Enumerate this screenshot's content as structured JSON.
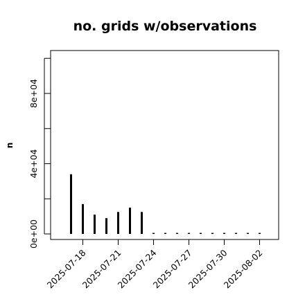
{
  "chart_data": {
    "type": "bar",
    "title": "no. grids w/observations",
    "xlabel": "",
    "ylabel": "n",
    "ylim": [
      0,
      100000
    ],
    "y_ticks": [
      0,
      40000,
      80000
    ],
    "y_tick_labels": [
      "0e+00",
      "4e+04",
      "8e+04"
    ],
    "x_tick_dates": [
      "2025-07-18",
      "2025-07-21",
      "2025-07-24",
      "2025-07-27",
      "2025-07-30",
      "2025-08-02"
    ],
    "highlight_tick": "2025-07-24",
    "highlight_color": "#228b22",
    "bar_color": "#000000",
    "grid": false,
    "categories": [
      "2025-07-17",
      "2025-07-18",
      "2025-07-19",
      "2025-07-20",
      "2025-07-21",
      "2025-07-22",
      "2025-07-23",
      "2025-07-24",
      "2025-07-25",
      "2025-07-26",
      "2025-07-27",
      "2025-07-28",
      "2025-07-29",
      "2025-07-30",
      "2025-07-31",
      "2025-08-01",
      "2025-08-02"
    ],
    "values": [
      34000,
      17000,
      11000,
      9000,
      12500,
      15000,
      12500,
      0,
      0,
      0,
      0,
      0,
      0,
      0,
      0,
      0,
      0
    ]
  }
}
